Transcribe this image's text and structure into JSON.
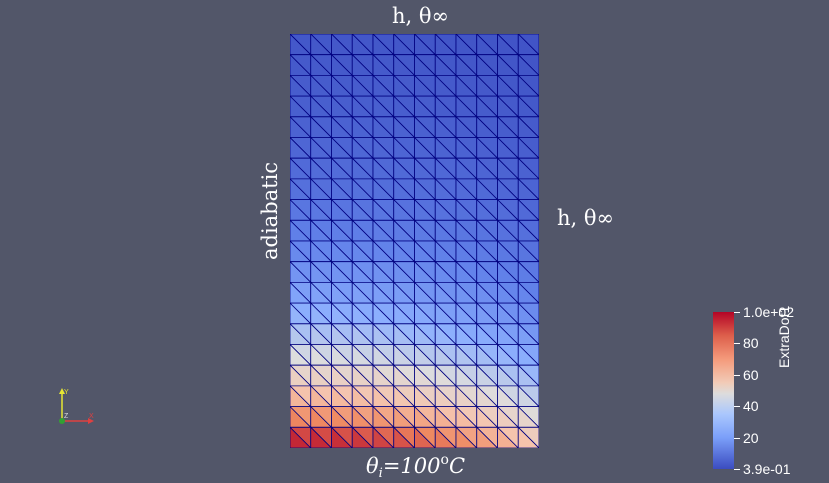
{
  "labels": {
    "top": "h, θ∞",
    "right": "h, θ∞",
    "left": "adiabatic",
    "bottom_theta": "θ",
    "bottom_sub": "i",
    "bottom_value": "=100",
    "bottom_sup": "o",
    "bottom_unit": "C"
  },
  "mesh": {
    "cols": 12,
    "rows": 20,
    "line_color": "#000080"
  },
  "colorbar": {
    "title": "ExtraDof1",
    "ticks": [
      "1.0e+02",
      "80",
      "60",
      "40",
      "20",
      "3.9e-01"
    ],
    "min": 0.39,
    "max": 100
  },
  "colors": {
    "background": "#525669",
    "cool": "#3b4cc0",
    "warm": "#b40426"
  },
  "axes_labels": {
    "y": "Y",
    "z": "Z",
    "x": "X"
  }
}
